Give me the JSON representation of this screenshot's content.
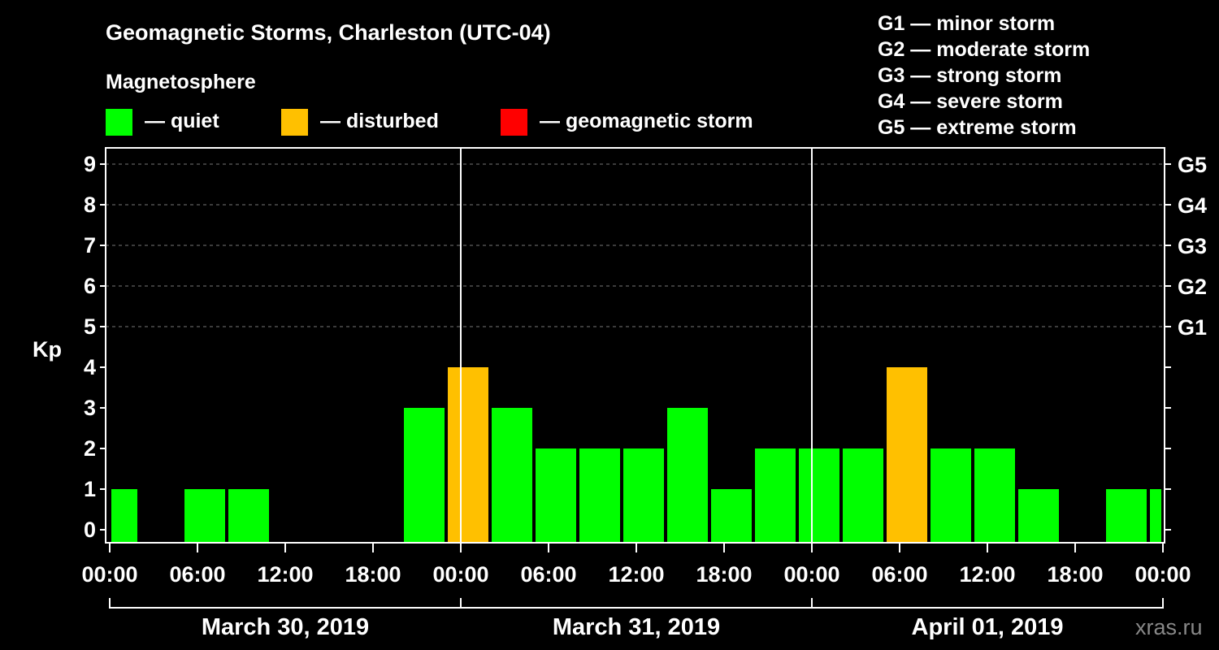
{
  "title": "Geomagnetic Storms, Charleston (UTC-04)",
  "subtitle": "Magnetosphere",
  "legend": [
    {
      "label": "— quiet",
      "color": "#00ff00"
    },
    {
      "label": "— disturbed",
      "color": "#ffc000"
    },
    {
      "label": "— geomagnetic storm",
      "color": "#ff0000"
    }
  ],
  "storm_scale": [
    "G1 — minor storm",
    "G2 — moderate storm",
    "G3 — strong storm",
    "G4 — severe storm",
    "G5 — extreme storm"
  ],
  "watermark": "xras.ru",
  "chart_data": {
    "type": "bar",
    "ylabel": "Kp",
    "ylim": [
      0,
      9
    ],
    "yticks": [
      "0",
      "1",
      "2",
      "3",
      "4",
      "5",
      "6",
      "7",
      "8",
      "9"
    ],
    "right_ticks": [
      {
        "kp": 5,
        "label": "G1"
      },
      {
        "kp": 6,
        "label": "G2"
      },
      {
        "kp": 7,
        "label": "G3"
      },
      {
        "kp": 8,
        "label": "G4"
      },
      {
        "kp": 9,
        "label": "G5"
      }
    ],
    "x_tick_labels": [
      "00:00",
      "06:00",
      "12:00",
      "18:00",
      "00:00",
      "06:00",
      "12:00",
      "18:00",
      "00:00",
      "06:00",
      "12:00",
      "18:00",
      "00:00"
    ],
    "dates": [
      "March 30, 2019",
      "March 31, 2019",
      "April 01, 2019"
    ],
    "grid": true,
    "bars": [
      {
        "start_hour": 0,
        "end_hour": 2,
        "kp": 1,
        "level": "quiet"
      },
      {
        "start_hour": 2,
        "end_hour": 5,
        "kp": 0,
        "level": "quiet"
      },
      {
        "start_hour": 5,
        "end_hour": 8,
        "kp": 1,
        "level": "quiet"
      },
      {
        "start_hour": 8,
        "end_hour": 11,
        "kp": 1,
        "level": "quiet"
      },
      {
        "start_hour": 11,
        "end_hour": 14,
        "kp": 0,
        "level": "quiet"
      },
      {
        "start_hour": 14,
        "end_hour": 17,
        "kp": 0,
        "level": "quiet"
      },
      {
        "start_hour": 17,
        "end_hour": 20,
        "kp": 0,
        "level": "quiet"
      },
      {
        "start_hour": 20,
        "end_hour": 23,
        "kp": 3,
        "level": "quiet"
      },
      {
        "start_hour": 23,
        "end_hour": 26,
        "kp": 4,
        "level": "disturbed"
      },
      {
        "start_hour": 26,
        "end_hour": 29,
        "kp": 3,
        "level": "quiet"
      },
      {
        "start_hour": 29,
        "end_hour": 32,
        "kp": 2,
        "level": "quiet"
      },
      {
        "start_hour": 32,
        "end_hour": 35,
        "kp": 2,
        "level": "quiet"
      },
      {
        "start_hour": 35,
        "end_hour": 38,
        "kp": 2,
        "level": "quiet"
      },
      {
        "start_hour": 38,
        "end_hour": 41,
        "kp": 3,
        "level": "quiet"
      },
      {
        "start_hour": 41,
        "end_hour": 44,
        "kp": 1,
        "level": "quiet"
      },
      {
        "start_hour": 44,
        "end_hour": 47,
        "kp": 2,
        "level": "quiet"
      },
      {
        "start_hour": 47,
        "end_hour": 50,
        "kp": 2,
        "level": "quiet"
      },
      {
        "start_hour": 50,
        "end_hour": 53,
        "kp": 2,
        "level": "quiet"
      },
      {
        "start_hour": 53,
        "end_hour": 56,
        "kp": 4,
        "level": "disturbed"
      },
      {
        "start_hour": 56,
        "end_hour": 59,
        "kp": 2,
        "level": "quiet"
      },
      {
        "start_hour": 59,
        "end_hour": 62,
        "kp": 2,
        "level": "quiet"
      },
      {
        "start_hour": 62,
        "end_hour": 65,
        "kp": 1,
        "level": "quiet"
      },
      {
        "start_hour": 65,
        "end_hour": 68,
        "kp": 0,
        "level": "quiet"
      },
      {
        "start_hour": 68,
        "end_hour": 71,
        "kp": 1,
        "level": "quiet"
      },
      {
        "start_hour": 71,
        "end_hour": 72,
        "kp": 1,
        "level": "quiet"
      }
    ],
    "colors": {
      "quiet": "#00ff00",
      "disturbed": "#ffc000",
      "storm": "#ff0000"
    }
  }
}
